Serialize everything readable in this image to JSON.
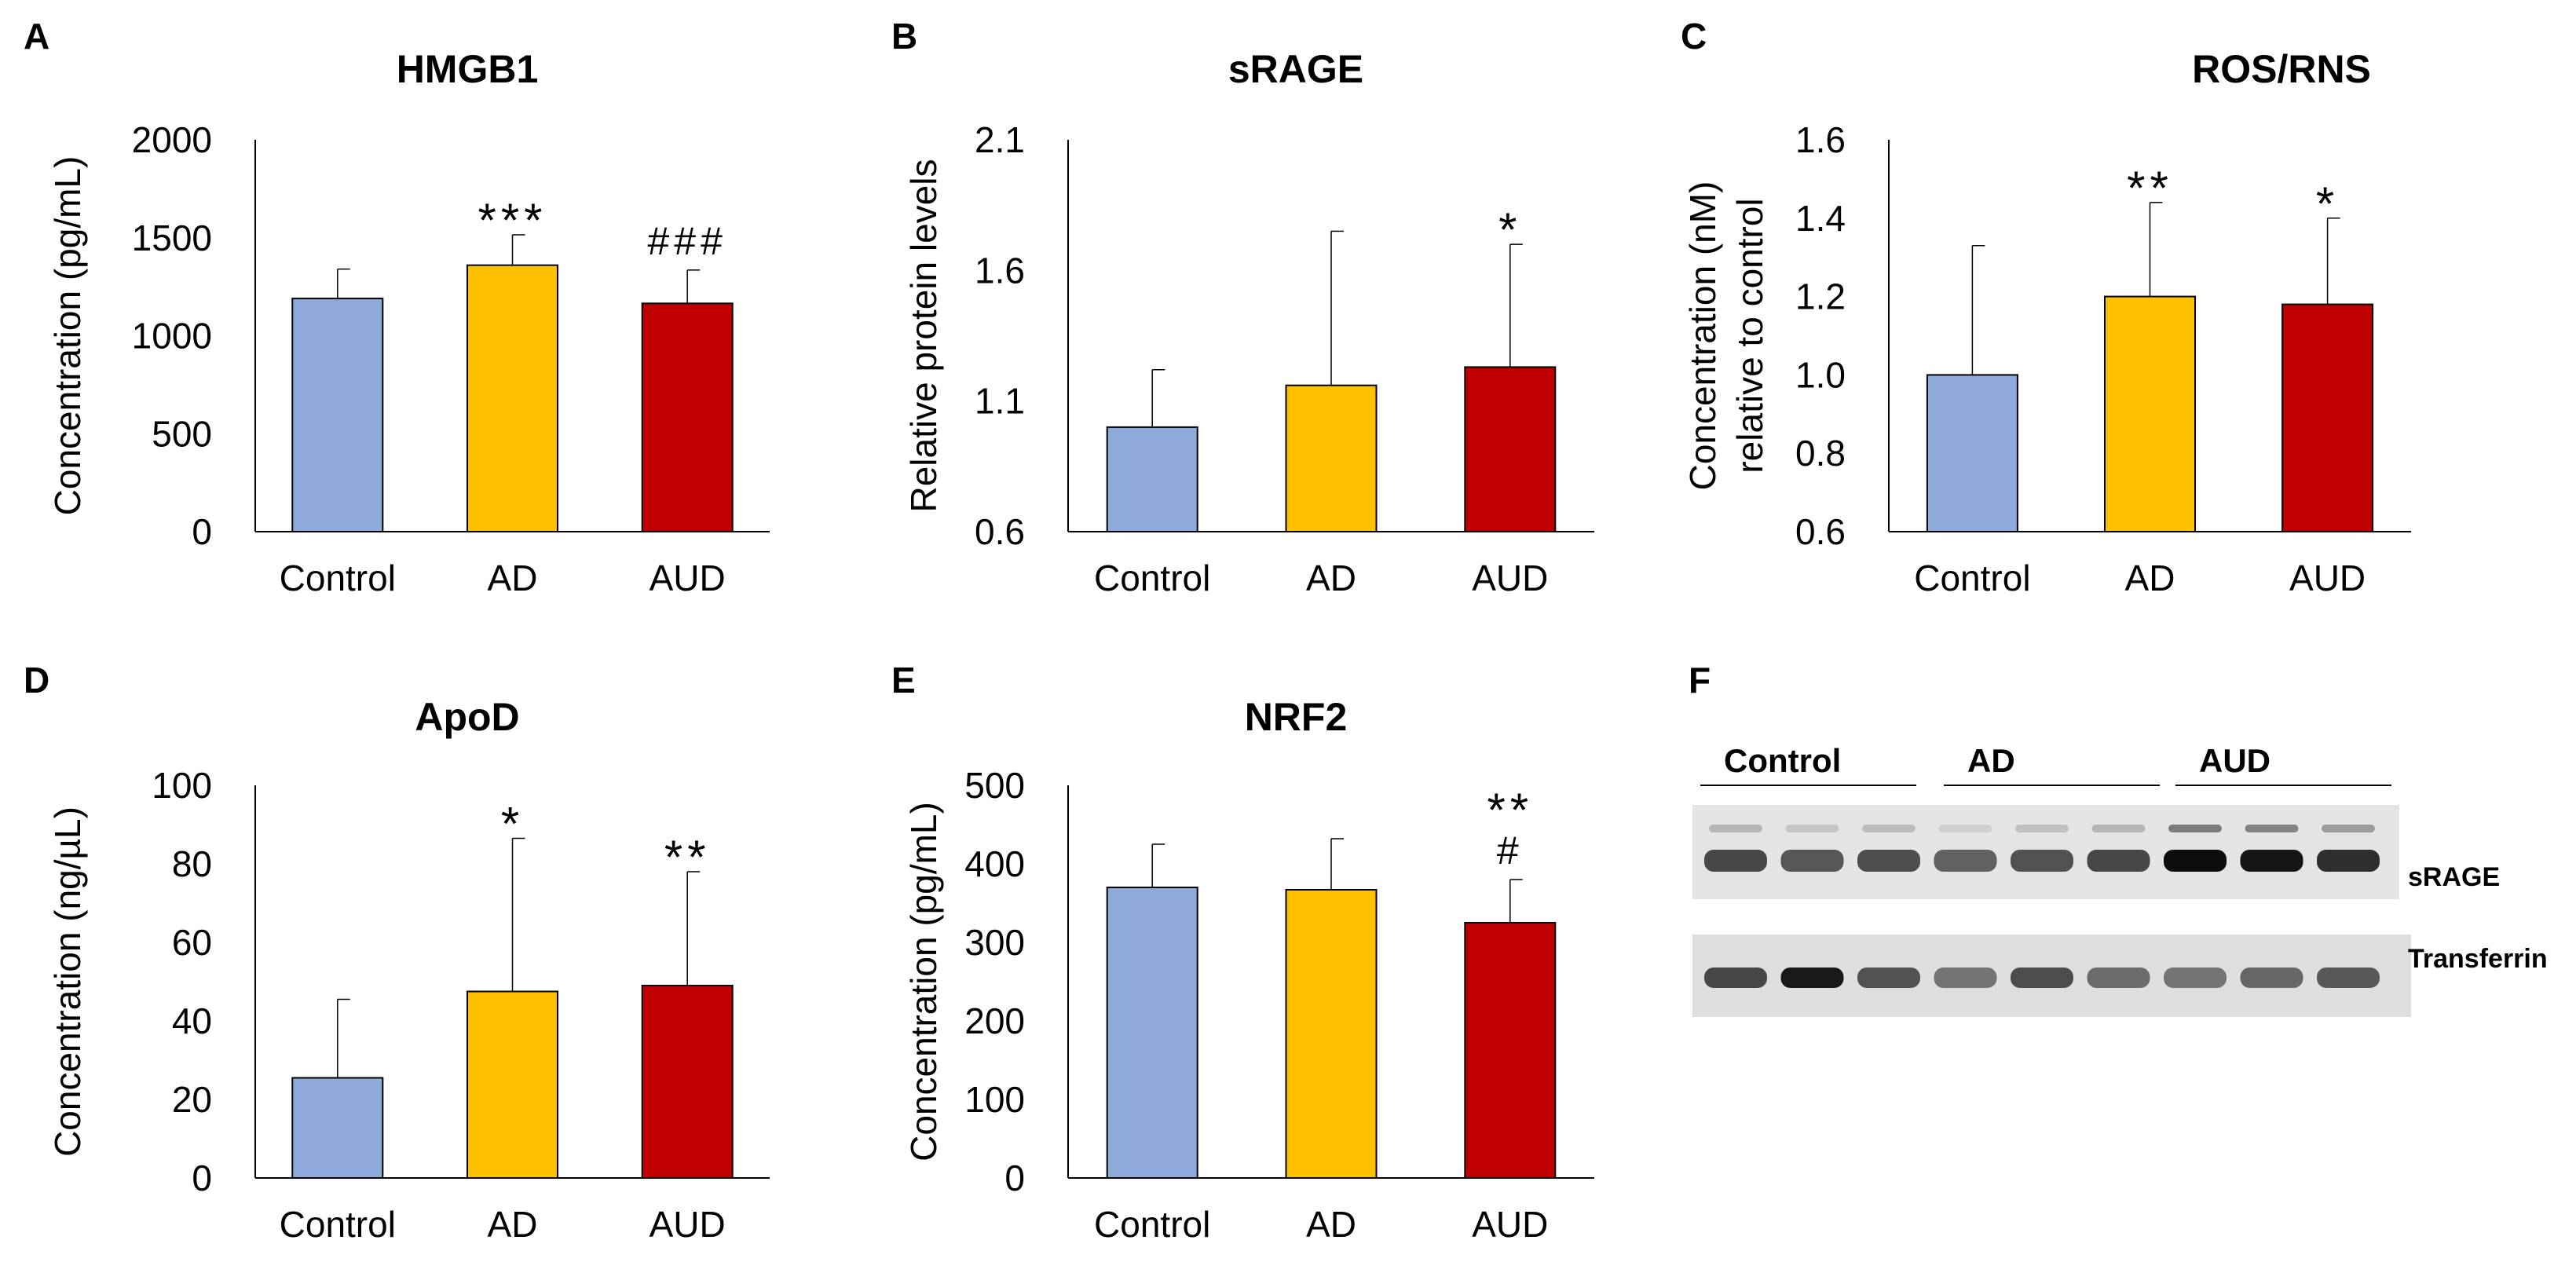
{
  "colors": {
    "Control": "#8eaadb",
    "AD": "#ffc000",
    "AUD": "#c00000",
    "axis": "#000000"
  },
  "chart_data": [
    {
      "panel": "A",
      "type": "bar",
      "title": "HMGB1",
      "ylabel": [
        "Concentration (pg/mL)"
      ],
      "categories": [
        "Control",
        "AD",
        "AUD"
      ],
      "values": [
        1190,
        1360,
        1165
      ],
      "errors": [
        150,
        155,
        170
      ],
      "ylim": [
        0,
        2000
      ],
      "yticks": [
        0,
        500,
        1000,
        1500,
        2000
      ],
      "ytick_labels": [
        "0",
        "500",
        "1000",
        "1500",
        "2000"
      ],
      "annotations": [
        "",
        "***",
        "###"
      ]
    },
    {
      "panel": "B",
      "type": "bar",
      "title": "sRAGE",
      "ylabel": [
        "Relative protein levels"
      ],
      "categories": [
        "Control",
        "AD",
        "AUD"
      ],
      "values": [
        1.0,
        1.16,
        1.23
      ],
      "errors": [
        0.22,
        0.59,
        0.47
      ],
      "ylim": [
        0.6,
        2.1
      ],
      "yticks": [
        0.6,
        1.1,
        1.6,
        2.1
      ],
      "ytick_labels": [
        "0.6",
        "1.1",
        "1.6",
        "2.1"
      ],
      "annotations": [
        "",
        "",
        "*"
      ]
    },
    {
      "panel": "C",
      "type": "bar",
      "title": "ROS/RNS",
      "ylabel": [
        "Concentration (nM)",
        "relative to control"
      ],
      "categories": [
        "Control",
        "AD",
        "AUD"
      ],
      "values": [
        1.0,
        1.2,
        1.18
      ],
      "errors": [
        0.33,
        0.24,
        0.22
      ],
      "ylim": [
        0.6,
        1.6
      ],
      "yticks": [
        0.6,
        0.8,
        1.0,
        1.2,
        1.4,
        1.6
      ],
      "ytick_labels": [
        "0.6",
        "0.8",
        "1.0",
        "1.2",
        "1.4",
        "1.6"
      ],
      "annotations": [
        "",
        "**",
        "*"
      ]
    },
    {
      "panel": "D",
      "type": "bar",
      "title": "ApoD",
      "ylabel": [
        "Concentration (ng/µL)"
      ],
      "categories": [
        "Control",
        "AD",
        "AUD"
      ],
      "values": [
        25.5,
        47.5,
        49
      ],
      "errors": [
        20,
        39,
        29
      ],
      "ylim": [
        0,
        100
      ],
      "yticks": [
        0,
        20,
        40,
        60,
        80,
        100
      ],
      "ytick_labels": [
        "0",
        "20",
        "40",
        "60",
        "80",
        "100"
      ],
      "annotations": [
        "",
        "*",
        "**"
      ]
    },
    {
      "panel": "E",
      "type": "bar",
      "title": "NRF2",
      "ylabel": [
        "Concentration (pg/mL)"
      ],
      "categories": [
        "Control",
        "AD",
        "AUD"
      ],
      "values": [
        370,
        367,
        325
      ],
      "errors": [
        55,
        65,
        55
      ],
      "ylim": [
        0,
        500
      ],
      "yticks": [
        0,
        100,
        200,
        300,
        400,
        500
      ],
      "ytick_labels": [
        "0",
        "100",
        "200",
        "300",
        "400",
        "500"
      ],
      "annotations": [
        "",
        "",
        "**\n#"
      ]
    }
  ],
  "blot": {
    "panel": "F",
    "groups": [
      "Control",
      "AD",
      "AUD"
    ],
    "bands": [
      "sRAGE",
      "Transferrin"
    ],
    "lanes_per_group": 3,
    "srage_intensity": [
      0.72,
      0.66,
      0.7,
      0.62,
      0.68,
      0.72,
      0.95,
      0.92,
      0.82
    ],
    "transferrin_intensity": [
      0.72,
      0.9,
      0.68,
      0.55,
      0.7,
      0.58,
      0.55,
      0.6,
      0.65
    ]
  }
}
